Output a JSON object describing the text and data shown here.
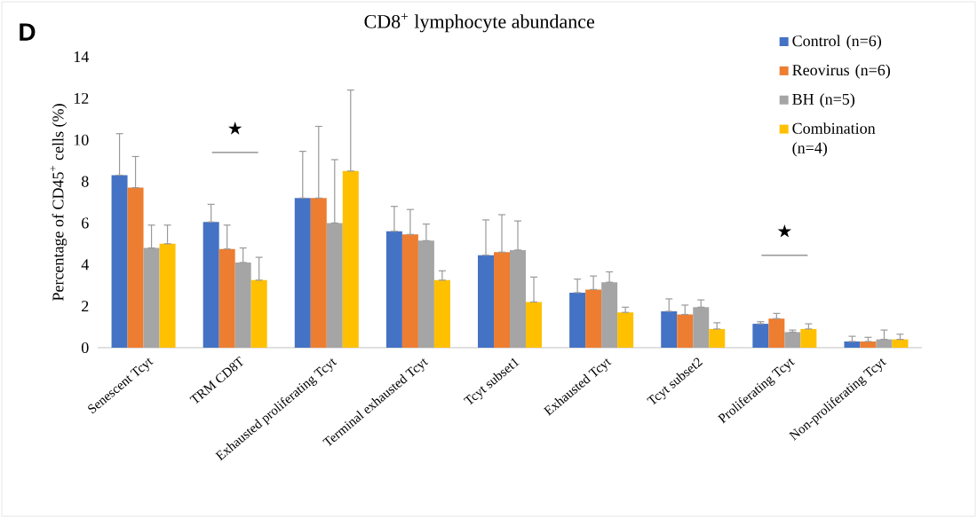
{
  "chart_data": {
    "type": "bar",
    "title": "CD8$^{+}$ lymphocyte abundance",
    "ylabel": "Percentage of CD45$^{+}$ cells  (%)",
    "categories": [
      "Senescent Tcyt",
      "TRM CD8T",
      "Exhausted proliferating Tcyt",
      "Terminal exhausted Tcyt",
      "Tcyt subset1",
      "Exhausted Tcyt",
      "Tcyt subset2",
      "Proliferating Tcyt",
      "Non-proliferating Tcyt"
    ],
    "series": [
      {
        "name": "Control (n=6)",
        "color": "#4472c4",
        "values": [
          8.3,
          6.05,
          7.2,
          5.6,
          4.45,
          2.65,
          1.75,
          1.15,
          0.3
        ],
        "errors": [
          [
            8.3,
            10.3
          ],
          [
            6.05,
            6.9
          ],
          [
            7.2,
            9.45
          ],
          [
            5.6,
            6.8
          ],
          [
            4.45,
            6.15
          ],
          [
            2.65,
            3.3
          ],
          [
            1.75,
            2.35
          ],
          [
            1.15,
            1.25
          ],
          [
            0.3,
            0.55
          ]
        ]
      },
      {
        "name": "Reovirus (n=6)",
        "color": "#ed7d31",
        "values": [
          7.7,
          4.75,
          7.2,
          5.45,
          4.6,
          2.8,
          1.6,
          1.4,
          0.3
        ],
        "errors": [
          [
            7.7,
            9.2
          ],
          [
            4.75,
            5.9
          ],
          [
            7.2,
            10.65
          ],
          [
            5.45,
            6.65
          ],
          [
            4.6,
            6.4
          ],
          [
            2.8,
            3.45
          ],
          [
            1.6,
            2.05
          ],
          [
            1.4,
            1.65
          ],
          [
            0.3,
            0.5
          ]
        ]
      },
      {
        "name": "BH (n=5)",
        "color": "#a5a5a5",
        "values": [
          4.8,
          4.1,
          6.0,
          5.15,
          4.7,
          3.15,
          1.95,
          0.75,
          0.4
        ],
        "errors": [
          [
            4.8,
            5.9
          ],
          [
            4.1,
            4.8
          ],
          [
            6.0,
            9.05
          ],
          [
            5.15,
            5.95
          ],
          [
            4.7,
            6.1
          ],
          [
            3.15,
            3.65
          ],
          [
            1.95,
            2.3
          ],
          [
            0.75,
            0.85
          ],
          [
            0.4,
            0.85
          ]
        ]
      },
      {
        "name": "Combination (n=4)",
        "color": "#ffc000",
        "values": [
          5.0,
          3.25,
          8.5,
          3.25,
          2.2,
          1.7,
          0.9,
          0.9,
          0.4
        ],
        "errors": [
          [
            5.0,
            5.9
          ],
          [
            3.25,
            4.35
          ],
          [
            8.5,
            12.4
          ],
          [
            3.25,
            3.7
          ],
          [
            2.2,
            3.4
          ],
          [
            1.7,
            1.95
          ],
          [
            0.9,
            1.2
          ],
          [
            0.9,
            1.15
          ],
          [
            0.4,
            0.65
          ]
        ]
      }
    ],
    "ylim": [
      0,
      14
    ],
    "yticks": [
      0,
      2,
      4,
      6,
      8,
      10,
      12,
      14
    ],
    "grid": false,
    "legend": "top right",
    "annotations": [
      "D",
      "★",
      "★"
    ]
  }
}
